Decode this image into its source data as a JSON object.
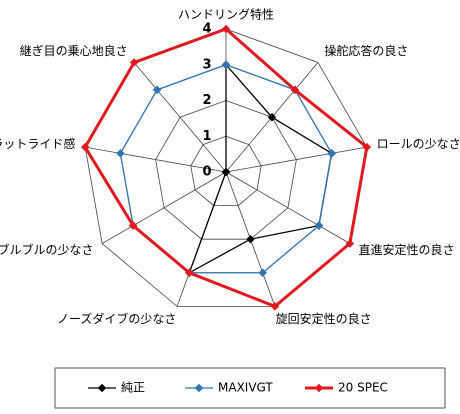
{
  "chart_data": {
    "type": "radar",
    "categories": [
      "ハンドリング特性",
      "操舵応答の良さ",
      "ロールの少なさ",
      "直進安定性の良さ",
      "旋回安定性の良さ",
      "ノーズダイブの少なさ",
      "ブルブルの少なさ",
      "フラットライド感",
      "継ぎ目の乗心地良さ"
    ],
    "series": [
      {
        "name": "純正",
        "color": "#000000",
        "values": [
          3,
          2,
          3,
          3,
          2,
          3,
          0,
          0,
          0
        ]
      },
      {
        "name": "MAXIVGT",
        "color": "#2e75b6",
        "values": [
          3,
          3,
          3,
          3,
          3,
          3,
          3,
          3,
          3
        ]
      },
      {
        "name": "20 SPEC",
        "color": "#e0191e",
        "values": [
          4,
          3,
          4,
          4,
          4,
          3,
          3,
          4,
          4
        ]
      }
    ],
    "rlim": [
      0,
      4
    ],
    "rticks": [
      0,
      1,
      2,
      3,
      4
    ]
  }
}
